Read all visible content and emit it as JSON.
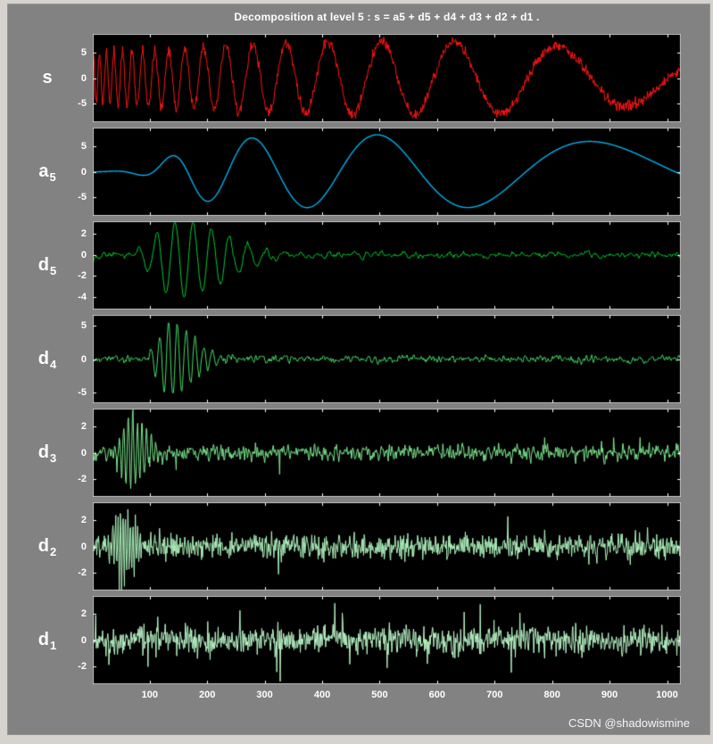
{
  "title": "Decomposition at level 5 : s = a5 + d5 + d4 + d3 + d2 + d1 .",
  "watermark": "CSDN @shadowismine",
  "window": {
    "frame_color": "#d6d3ce",
    "figure_bg": "#828282",
    "axes_bg": "#000000",
    "axis_box_color": "#c6c6c6",
    "tick_color": "#ffffff"
  },
  "chart_data": {
    "type": "line",
    "n_points": 1024,
    "x_range": [
      1,
      1024
    ],
    "x_ticks": [
      100,
      200,
      300,
      400,
      500,
      600,
      700,
      800,
      900,
      1000
    ],
    "panels": [
      {
        "id": "s",
        "label": "s",
        "sub": "",
        "color": "#ff1515",
        "line_width": 1,
        "ylim": [
          -8.6,
          8.6
        ],
        "yticks": [
          5,
          0,
          -5
        ],
        "signal": {
          "kind": "doppler",
          "seed": 11,
          "ampBase": 4.8,
          "ampSin": 2.4,
          "c": 4.8,
          "d": 0.22,
          "negate": true,
          "noise": 0.85
        }
      },
      {
        "id": "a5",
        "label": "a",
        "sub": "5",
        "color": "#00b2ee",
        "line_width": 1.4,
        "ylim": [
          -8.6,
          8.6
        ],
        "yticks": [
          5,
          0,
          -5
        ],
        "signal": {
          "kind": "doppler",
          "seed": 12,
          "ampBase": 4.8,
          "ampSin": 2.4,
          "c": 3.8,
          "d": 0.53,
          "negate": true,
          "gateU": 0.13,
          "gateW": 0.025,
          "noise": 0
        }
      },
      {
        "id": "d5",
        "label": "d",
        "sub": "5",
        "color": "#00cc33",
        "line_width": 1,
        "ylim": [
          -5.2,
          3.2
        ],
        "yticks": [
          2,
          0,
          -2,
          -4
        ],
        "signal": {
          "kind": "burst",
          "seed": 13,
          "u0": 0.07,
          "u1": 0.33,
          "peakU": 0.145,
          "periodU": 0.031,
          "amp": 3.7,
          "offset": -0.45,
          "noise": 0.25,
          "smooth": 5
        }
      },
      {
        "id": "d4",
        "label": "d",
        "sub": "4",
        "color": "#44dd66",
        "line_width": 1,
        "ylim": [
          -6.6,
          6.6
        ],
        "yticks": [
          5,
          0,
          -5
        ],
        "signal": {
          "kind": "burst",
          "seed": 14,
          "u0": 0.095,
          "u1": 0.235,
          "peakU": 0.128,
          "periodU": 0.015,
          "amp": 5.3,
          "offset": 0,
          "noise": 0.45,
          "smooth": 3
        }
      },
      {
        "id": "d3",
        "label": "d",
        "sub": "3",
        "color": "#7dea8f",
        "line_width": 1,
        "ylim": [
          -3.4,
          3.4
        ],
        "yticks": [
          2,
          0,
          -2
        ],
        "signal": {
          "kind": "burst",
          "seed": 15,
          "u0": 0.035,
          "u1": 0.13,
          "peakU": 0.062,
          "periodU": 0.0078,
          "amp": 2.7,
          "offset": 0,
          "noise": 0.5,
          "smooth": 2,
          "spikeProb": 0.012,
          "spikeAmp": 1.1
        }
      },
      {
        "id": "d2",
        "label": "d",
        "sub": "2",
        "color": "#aef2bc",
        "line_width": 1,
        "ylim": [
          -3.4,
          3.4
        ],
        "yticks": [
          2,
          0,
          -2
        ],
        "signal": {
          "kind": "burst",
          "seed": 16,
          "u0": 0.025,
          "u1": 0.09,
          "peakU": 0.05,
          "periodU": 0.0042,
          "amp": 2.9,
          "offset": 0,
          "noise": 0.8,
          "smooth": 1,
          "spikeProb": 0.01,
          "spikeAmp": 1.2
        }
      },
      {
        "id": "d1",
        "label": "d",
        "sub": "1",
        "color": "#b9f5c6",
        "line_width": 1,
        "ylim": [
          -3.4,
          3.4
        ],
        "yticks": [
          2,
          0,
          -2
        ],
        "signal": {
          "kind": "noise",
          "seed": 17,
          "noise": 0.9,
          "smooth": 0,
          "spikeProb": 0.03,
          "spikeAmp": 1.6
        }
      }
    ]
  }
}
